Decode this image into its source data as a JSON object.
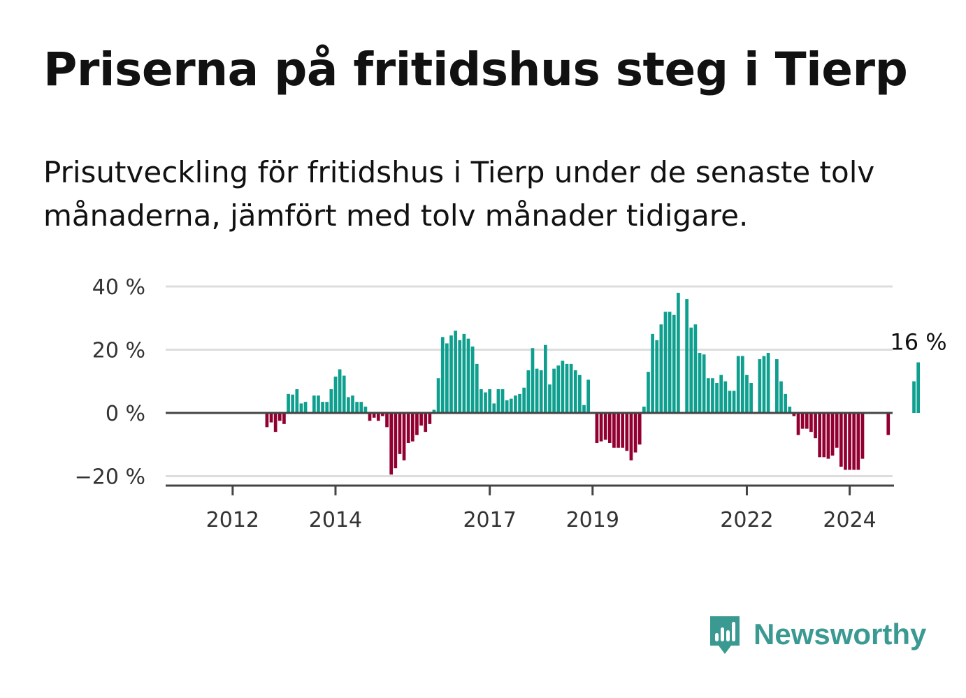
{
  "header": {
    "title": "Priserna på fritidshus steg i Tierp",
    "subtitle": "Prisutveckling för fritidshus i Tierp under de senaste tolv månaderna, jämfört med tolv månader tidigare."
  },
  "brand": {
    "name": "Newsworthy",
    "icon": "newsworthy-logo-icon",
    "color": "#3a9a92"
  },
  "colors": {
    "positive": "#0e9f8f",
    "negative": "#920032",
    "grid": "#dddddd",
    "axis": "#444444"
  },
  "chart_data": {
    "type": "bar",
    "title": "Priserna på fritidshus steg i Tierp",
    "subtitle": "Prisutveckling för fritidshus i Tierp under de senaste tolv månaderna, jämfört med tolv månader tidigare.",
    "xlabel": "",
    "ylabel": "",
    "x_start": "2011-01",
    "frequency": "monthly",
    "ylim": [
      -22,
      40
    ],
    "yticks": [
      40,
      20,
      0,
      -20
    ],
    "ytick_labels": [
      "40 %",
      "20 %",
      "0 %",
      "−20 %"
    ],
    "xticks": [
      2012,
      2014,
      2017,
      2019,
      2022,
      2024
    ],
    "xtick_labels": [
      "2012",
      "2014",
      "2017",
      "2019",
      "2022",
      "2024"
    ],
    "end_label": "16 %",
    "values": [
      null,
      null,
      null,
      null,
      null,
      null,
      null,
      null,
      null,
      null,
      null,
      null,
      null,
      null,
      null,
      null,
      null,
      null,
      null,
      null,
      -4.5,
      -3.0,
      -6.0,
      -2.5,
      -3.5,
      6.0,
      5.8,
      7.5,
      3.0,
      3.5,
      null,
      5.5,
      5.5,
      3.5,
      3.5,
      7.5,
      11.5,
      13.8,
      11.8,
      5.0,
      5.5,
      3.5,
      3.5,
      2.0,
      -2.5,
      -1.5,
      -2.5,
      -1.0,
      -4.5,
      -19.5,
      -17.5,
      -13.0,
      -15.0,
      -9.5,
      -9.0,
      -7.0,
      -4.0,
      -6.0,
      -3.5,
      1.0,
      11.0,
      24.0,
      22.0,
      24.5,
      26.0,
      23.0,
      25.0,
      23.5,
      21.0,
      15.5,
      7.5,
      6.5,
      7.5,
      3.0,
      7.5,
      7.5,
      4.0,
      4.5,
      5.5,
      6.0,
      8.0,
      13.5,
      20.5,
      14.0,
      13.5,
      21.5,
      9.0,
      14.0,
      15.0,
      16.5,
      15.5,
      15.5,
      13.5,
      12.0,
      2.5,
      10.5,
      null,
      -9.5,
      -9.0,
      -8.5,
      -9.5,
      -11.0,
      -11.0,
      -11.0,
      -12.0,
      -15.0,
      -12.5,
      -10.0,
      2.0,
      13.0,
      25.0,
      23.0,
      28.0,
      32.0,
      32.0,
      31.0,
      38.0,
      null,
      36.0,
      27.0,
      28.0,
      19.0,
      18.5,
      11.0,
      11.0,
      9.5,
      12.0,
      10.0,
      7.0,
      7.0,
      18.0,
      18.0,
      12.0,
      9.5,
      null,
      17.0,
      18.0,
      19.0,
      null,
      17.0,
      10.0,
      6.0,
      2.0,
      -1.0,
      -7.0,
      -5.0,
      -5.0,
      -6.0,
      -8.0,
      -14.0,
      -14.0,
      -14.5,
      -13.5,
      -11.0,
      -17.0,
      -18.0,
      -18.0,
      -18.0,
      -18.0,
      -14.5,
      null,
      null,
      null,
      null,
      null,
      -7.0,
      null,
      null,
      null,
      null,
      null,
      10.0,
      16.0
    ]
  }
}
